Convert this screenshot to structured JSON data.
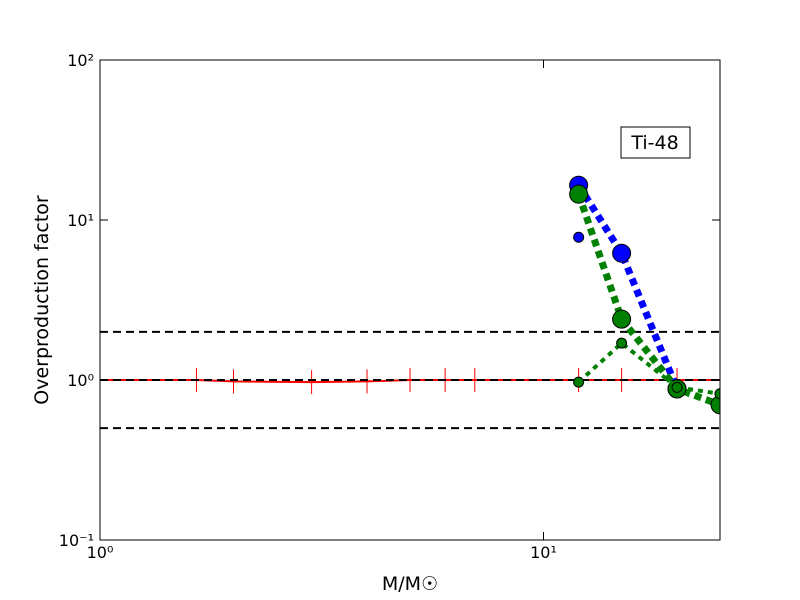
{
  "chart_data": {
    "type": "line",
    "xlabel": "M/M☉",
    "ylabel": "Overproduction factor",
    "annotation": "Ti-48",
    "xscale": "log",
    "yscale": "log",
    "xlim": [
      1,
      25
    ],
    "ylim": [
      0.1,
      100
    ],
    "xticks": [
      {
        "value": 1,
        "label": "10⁰"
      },
      {
        "value": 10,
        "label": "10¹"
      }
    ],
    "yticks": [
      {
        "value": 0.1,
        "label": "10⁻¹"
      },
      {
        "value": 1,
        "label": "10⁰"
      },
      {
        "value": 10,
        "label": "10¹"
      },
      {
        "value": 100,
        "label": "10²"
      }
    ],
    "reference_lines": [
      2,
      1,
      0.5
    ],
    "reference_color": "#000000",
    "series": [
      {
        "color": "#ff0000",
        "x": [
          1,
          1.65,
          2,
          3,
          4,
          5,
          6,
          7,
          12,
          15,
          20,
          25
        ],
        "values": [
          1,
          1,
          0.98,
          0.97,
          0.98,
          1,
          1,
          1,
          1,
          1,
          1,
          1
        ]
      },
      {
        "color": "#0000ff",
        "x": [
          12,
          15,
          20
        ],
        "values": [
          16.5,
          6.2,
          0.88
        ]
      },
      {
        "color": "#008000",
        "x": [
          12,
          15,
          20,
          25
        ],
        "values": [
          14.5,
          2.4,
          0.88,
          0.7
        ]
      },
      {
        "color": "#0000ff",
        "x": [
          12
        ],
        "values": [
          7.8
        ]
      },
      {
        "color": "#008000",
        "x": [
          12,
          15,
          20,
          25
        ],
        "values": [
          0.97,
          1.7,
          0.9,
          0.82
        ]
      }
    ]
  }
}
